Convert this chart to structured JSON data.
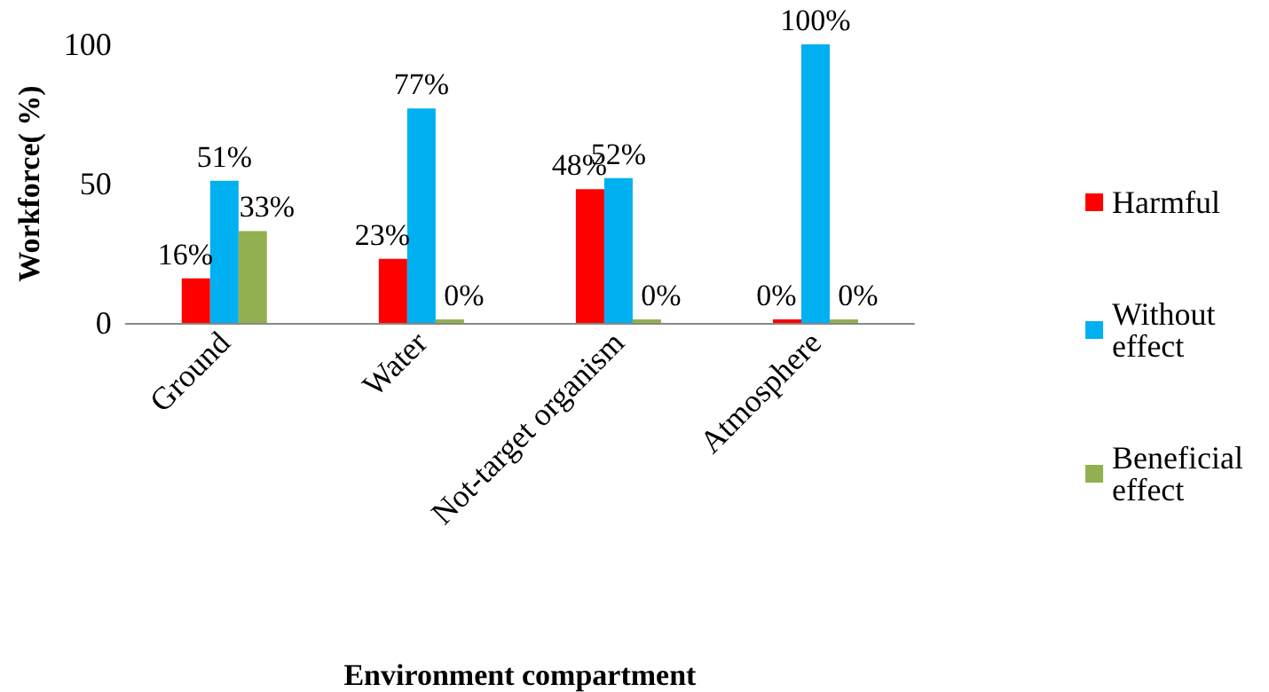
{
  "chart_data": {
    "type": "bar",
    "xlabel": "Environment compartment",
    "ylabel": "Workforce( %)",
    "categories": [
      "Ground",
      "Water",
      "Not-target organism",
      "Atmosphere"
    ],
    "series": [
      {
        "name": "Harmful",
        "color": "#ff0000",
        "values": [
          16,
          23,
          48,
          0
        ],
        "value_labels": [
          "16%",
          "23%",
          "48%",
          "0%"
        ]
      },
      {
        "name": "Without effect",
        "color": "#00b0f0",
        "values": [
          51,
          77,
          52,
          100
        ],
        "value_labels": [
          "51%",
          "77%",
          "52%",
          "100%"
        ]
      },
      {
        "name": "Beneficial effect",
        "color": "#92b050",
        "values": [
          33,
          0,
          0,
          0
        ],
        "value_labels": [
          "33%",
          "0%",
          "0%",
          "0%"
        ]
      }
    ],
    "ylim": [
      0,
      100
    ],
    "yticks": [
      0,
      50,
      100
    ],
    "grid": false,
    "legend": "right"
  }
}
